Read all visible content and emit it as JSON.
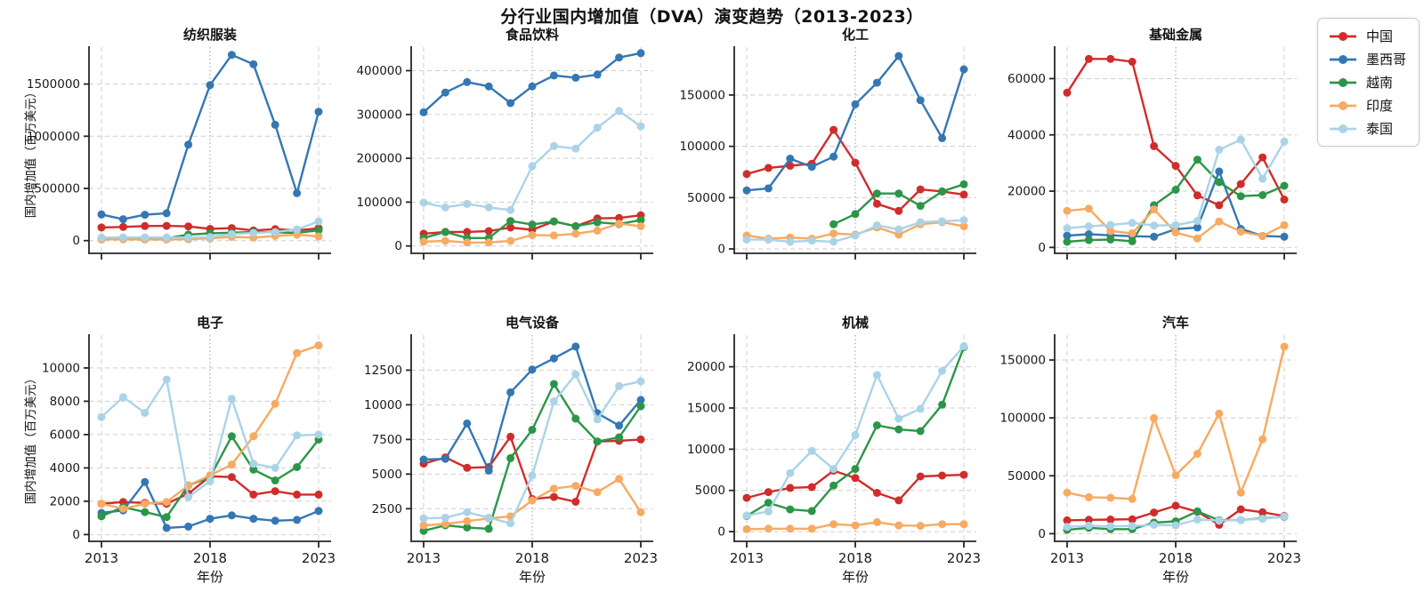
{
  "chart_data": {
    "type": "line",
    "title": "分行业国内增加值（DVA）演变趋势（2013-2023）",
    "ylabel": "国内增加值（百万美元）",
    "xlabel": "年份",
    "x": [
      2013,
      2014,
      2015,
      2016,
      2017,
      2018,
      2019,
      2020,
      2021,
      2022,
      2023
    ],
    "xticks": [
      2013,
      2018,
      2023
    ],
    "grid": "dashed",
    "legend_position": "top-right",
    "legend": {
      "series": [
        {
          "key": "china",
          "name": "中国",
          "color": "#cf2d2b"
        },
        {
          "key": "mexico",
          "name": "墨西哥",
          "color": "#3477b3"
        },
        {
          "key": "vietnam",
          "name": "越南",
          "color": "#2b9648"
        },
        {
          "key": "india",
          "name": "印度",
          "color": "#f7aa61"
        },
        {
          "key": "thailand",
          "name": "泰国",
          "color": "#abd3e8"
        }
      ]
    },
    "subplots": [
      {
        "key": "textiles",
        "title": "纺织服装",
        "yticks": [
          0,
          500000,
          1000000,
          1500000
        ],
        "ylim": [
          -121800,
          1854000
        ],
        "series": [
          [
            126000,
            131000,
            140000,
            141000,
            136000,
            112000,
            120000,
            98000,
            110000,
            98000,
            118000
          ],
          [
            250000,
            205000,
            248000,
            262000,
            920000,
            1490000,
            1780000,
            1690000,
            1110000,
            455000,
            1235000
          ],
          [
            22000,
            25000,
            25000,
            22000,
            58000,
            70000,
            76000,
            83000,
            79000,
            74000,
            100000
          ],
          [
            11000,
            12000,
            11000,
            11000,
            14000,
            21000,
            36000,
            29000,
            44000,
            57000,
            40000
          ],
          [
            30000,
            31000,
            31000,
            30000,
            30000,
            34000,
            62000,
            73000,
            82000,
            107000,
            184000
          ]
        ]
      },
      {
        "key": "food-beverage",
        "title": "食品饮料",
        "yticks": [
          0,
          100000,
          200000,
          300000,
          400000
        ],
        "ylim": [
          -16800,
          453700
        ],
        "series": [
          [
            28000,
            32000,
            32000,
            34000,
            42000,
            37000,
            56000,
            45000,
            63000,
            64000,
            70000
          ],
          [
            305000,
            350000,
            374000,
            364000,
            326000,
            364000,
            389000,
            384000,
            391000,
            430000,
            440000
          ],
          [
            18000,
            32000,
            18000,
            18000,
            57000,
            49000,
            56000,
            45000,
            54000,
            50000,
            59000
          ],
          [
            10000,
            11500,
            8000,
            8000,
            11500,
            25000,
            24000,
            28000,
            35000,
            51000,
            45000
          ],
          [
            99000,
            88000,
            96000,
            88000,
            82000,
            182000,
            228000,
            222000,
            270000,
            308000,
            273000
          ]
        ]
      },
      {
        "key": "chemicals",
        "title": "化工",
        "yticks": [
          0,
          50000,
          100000,
          150000
        ],
        "ylim": [
          -4300,
          196700
        ],
        "series": [
          [
            73000,
            79000,
            81000,
            83000,
            116000,
            84000,
            44000,
            37000,
            58000,
            56000,
            53000
          ],
          [
            57000,
            59000,
            88000,
            80000,
            90000,
            141000,
            162000,
            188000,
            145000,
            108000,
            175000
          ],
          [
            null,
            null,
            null,
            null,
            24000,
            34000,
            54000,
            54000,
            42000,
            56000,
            63000
          ],
          [
            13000,
            10000,
            11000,
            10000,
            15000,
            14000,
            21000,
            14000,
            24000,
            26000,
            22000
          ],
          [
            9000,
            9000,
            7000,
            8000,
            7000,
            13000,
            23000,
            19000,
            26000,
            27000,
            28000
          ]
        ]
      },
      {
        "key": "basic-metals",
        "title": "基础金属",
        "yticks": [
          0,
          20000,
          40000,
          60000
        ],
        "ylim": [
          -2100,
          71200
        ],
        "series": [
          [
            55000,
            67000,
            67000,
            66000,
            36000,
            29000,
            18500,
            15000,
            22500,
            32000,
            17000
          ],
          [
            4200,
            4700,
            4300,
            4000,
            3800,
            6500,
            7100,
            27000,
            6600,
            4100,
            3800
          ],
          [
            2000,
            2600,
            2800,
            2200,
            15000,
            20500,
            31200,
            23200,
            18200,
            18600,
            21900
          ],
          [
            13000,
            13800,
            5800,
            5000,
            13500,
            5300,
            3200,
            9200,
            5600,
            4100,
            7900
          ],
          [
            6800,
            7500,
            8000,
            8700,
            7800,
            7900,
            9400,
            34700,
            38300,
            24400,
            37600
          ]
        ]
      },
      {
        "key": "electronics",
        "title": "电子",
        "yticks": [
          0,
          2000,
          4000,
          6000,
          8000,
          10000
        ],
        "ylim": [
          -407,
          11970
        ],
        "series": [
          [
            1850,
            1950,
            1900,
            1850,
            2450,
            3500,
            3450,
            2400,
            2600,
            2400,
            2400
          ],
          [
            1300,
            1450,
            3150,
            400,
            480,
            950,
            1150,
            950,
            830,
            880,
            1420
          ],
          [
            1100,
            1650,
            1350,
            1050,
            2950,
            3450,
            5900,
            3900,
            3250,
            4050,
            5700
          ],
          [
            1850,
            1550,
            1850,
            1950,
            2950,
            3550,
            4200,
            5900,
            7850,
            10900,
            11350
          ],
          [
            7050,
            8250,
            7300,
            9300,
            2250,
            3200,
            8150,
            4250,
            4000,
            5950,
            6000
          ]
        ]
      },
      {
        "key": "electrical-equipment",
        "title": "电气设备",
        "yticks": [
          2500,
          5000,
          7500,
          10000,
          12500
        ],
        "ylim": [
          146,
          15030
        ],
        "series": [
          [
            5750,
            6200,
            5450,
            5500,
            7700,
            3200,
            3350,
            3000,
            7350,
            7400,
            7500
          ],
          [
            6050,
            6100,
            8650,
            5250,
            10900,
            12550,
            13350,
            14200,
            9400,
            8500,
            10350
          ],
          [
            900,
            1300,
            1150,
            1050,
            6150,
            8200,
            11500,
            9000,
            7350,
            7650,
            9900
          ],
          [
            1300,
            1400,
            1600,
            1800,
            1950,
            3100,
            3950,
            4150,
            3700,
            4650,
            2250
          ],
          [
            1800,
            1850,
            2250,
            1850,
            1450,
            4900,
            10250,
            12200,
            8950,
            11350,
            11700
          ]
        ]
      },
      {
        "key": "machinery",
        "title": "机械",
        "yticks": [
          0,
          5000,
          10000,
          15000,
          20000
        ],
        "ylim": [
          -1176,
          23840
        ],
        "series": [
          [
            4100,
            4800,
            5300,
            5400,
            7400,
            6500,
            4700,
            3800,
            6700,
            6800,
            6900
          ],
          [
            null,
            null,
            null,
            null,
            null,
            null,
            null,
            null,
            null,
            null,
            null
          ],
          [
            1900,
            3500,
            2700,
            2500,
            5600,
            7600,
            12900,
            12400,
            12200,
            15400,
            22400
          ],
          [
            300,
            350,
            350,
            350,
            900,
            750,
            1150,
            750,
            700,
            900,
            900
          ],
          [
            1950,
            2450,
            7100,
            9800,
            7600,
            11700,
            19000,
            13700,
            14900,
            19500,
            22500
          ]
        ]
      },
      {
        "key": "automobiles",
        "title": "汽车",
        "yticks": [
          0,
          50000,
          100000,
          150000
        ],
        "ylim": [
          -6600,
          171500
        ],
        "series": [
          [
            11500,
            12000,
            12200,
            12400,
            18300,
            24200,
            19000,
            7700,
            21000,
            18500,
            15300
          ],
          [
            null,
            null,
            null,
            null,
            null,
            null,
            null,
            null,
            null,
            null,
            null
          ],
          [
            3300,
            5100,
            3900,
            3900,
            9600,
            10700,
            19300,
            11700,
            11800,
            13300,
            14600
          ],
          [
            35500,
            31500,
            31000,
            30000,
            99800,
            50500,
            69000,
            103800,
            35500,
            81500,
            161500
          ],
          [
            5800,
            6900,
            6400,
            6600,
            7600,
            7200,
            12200,
            11300,
            11800,
            12800,
            14800
          ]
        ]
      }
    ]
  }
}
